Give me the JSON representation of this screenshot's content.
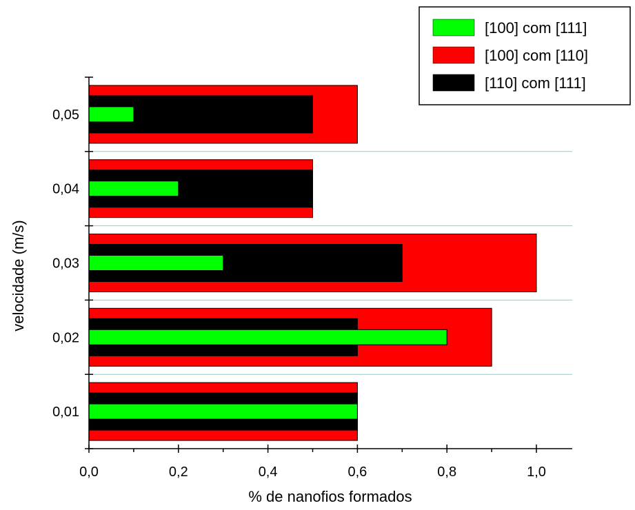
{
  "chart_data": {
    "type": "bar",
    "orientation": "horizontal",
    "title": "",
    "xlabel": "% de nanofios formados",
    "ylabel": "velocidade (m/s)",
    "categories": [
      "0,01",
      "0,02",
      "0,03",
      "0,04",
      "0,05"
    ],
    "xlim": [
      0,
      1.08
    ],
    "xticks": [
      0,
      0.2,
      0.4,
      0.6,
      0.8,
      1.0
    ],
    "xtick_labels": [
      "0,0",
      "0,2",
      "0,4",
      "0,6",
      "0,8",
      "1,0"
    ],
    "series": [
      {
        "name": "[100] com [110]",
        "color": "#ff0000",
        "values": [
          0.6,
          0.9,
          1.0,
          0.5,
          0.6
        ]
      },
      {
        "name": "[110] com [111]",
        "color": "#000000",
        "values": [
          0.6,
          0.6,
          0.7,
          0.5,
          0.5
        ]
      },
      {
        "name": "[100] com [111]",
        "color": "#00ff00",
        "values": [
          0.6,
          0.8,
          0.3,
          0.2,
          0.1
        ]
      }
    ],
    "legend": {
      "position": "top-right",
      "order": [
        "[100] com [111]",
        "[100] com [110]",
        "[110] com [111]"
      ]
    },
    "grid": {
      "horizontal": true,
      "color": "#66dddd"
    }
  }
}
